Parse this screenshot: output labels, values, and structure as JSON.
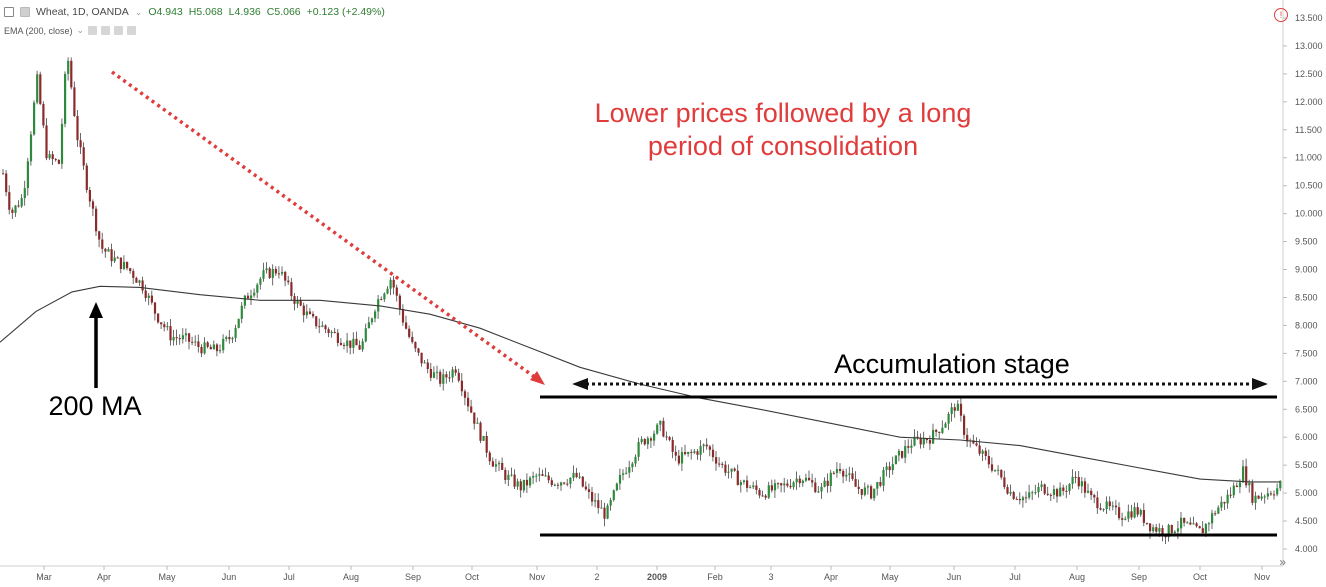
{
  "header": {
    "symbol": "Wheat, 1D, OANDA",
    "open": "O4.943",
    "high": "H5.068",
    "low": "L4.936",
    "close": "C5.066",
    "change": "+0.123 (+2.49%)"
  },
  "indicator": {
    "label": "EMA (200, close)"
  },
  "annotations": {
    "headline_line1": "Lower prices followed by a long",
    "headline_line2": "period of consolidation",
    "accumulation": "Accumulation stage",
    "ma_label": "200 MA"
  },
  "scroll_label": "»",
  "alert_label": "!",
  "chart_data": {
    "type": "candlestick",
    "title": "Wheat, 1D, OANDA",
    "y_ticks": [
      "13.500",
      "13.000",
      "12.500",
      "12.000",
      "11.500",
      "11.000",
      "10.500",
      "10.000",
      "9.500",
      "9.000",
      "8.500",
      "8.000",
      "7.500",
      "7.000",
      "6.500",
      "6.000",
      "5.500",
      "5.000",
      "4.500",
      "4.000"
    ],
    "x_ticks": [
      "Mar",
      "Apr",
      "May",
      "Jun",
      "Jul",
      "Aug",
      "Sep",
      "Oct",
      "Nov",
      "2",
      "2009",
      "Feb",
      "3",
      "Apr",
      "May",
      "Jun",
      "Jul",
      "Aug",
      "Sep",
      "Oct",
      "Nov"
    ],
    "ylim": [
      3.8,
      13.7
    ],
    "grid": false,
    "price_path": [
      [
        0,
        10.9
      ],
      [
        0.03,
        10.0
      ],
      [
        0.06,
        12.4
      ],
      [
        0.09,
        11.0
      ],
      [
        0.13,
        12.9
      ],
      [
        0.16,
        11.0
      ],
      [
        0.21,
        9.8
      ],
      [
        0.25,
        9.1
      ],
      [
        0.3,
        8.8
      ],
      [
        0.34,
        8.0
      ],
      [
        0.4,
        7.6
      ],
      [
        0.46,
        7.6
      ],
      [
        0.5,
        8.4
      ],
      [
        0.57,
        9.0
      ],
      [
        0.63,
        8.3
      ],
      [
        0.7,
        7.8
      ],
      [
        0.76,
        7.6
      ],
      [
        0.82,
        8.3
      ],
      [
        0.88,
        8.9
      ],
      [
        0.92,
        8.1
      ],
      [
        0.97,
        7.3
      ],
      [
        1.0,
        7.0
      ]
    ],
    "series_points": [
      {
        "x": 0,
        "y": 7.7
      },
      {
        "x": 36,
        "y": 8.25
      },
      {
        "x": 72,
        "y": 8.6
      },
      {
        "x": 100,
        "y": 8.7
      },
      {
        "x": 140,
        "y": 8.68
      },
      {
        "x": 200,
        "y": 8.55
      },
      {
        "x": 260,
        "y": 8.45
      },
      {
        "x": 320,
        "y": 8.45
      },
      {
        "x": 380,
        "y": 8.35
      },
      {
        "x": 430,
        "y": 8.2
      },
      {
        "x": 480,
        "y": 7.95
      },
      {
        "x": 530,
        "y": 7.6
      },
      {
        "x": 580,
        "y": 7.25
      },
      {
        "x": 640,
        "y": 6.95
      },
      {
        "x": 700,
        "y": 6.7
      },
      {
        "x": 760,
        "y": 6.5
      },
      {
        "x": 830,
        "y": 6.25
      },
      {
        "x": 900,
        "y": 6.0
      },
      {
        "x": 960,
        "y": 5.95
      },
      {
        "x": 1020,
        "y": 5.85
      },
      {
        "x": 1080,
        "y": 5.65
      },
      {
        "x": 1140,
        "y": 5.45
      },
      {
        "x": 1200,
        "y": 5.25
      },
      {
        "x": 1250,
        "y": 5.2
      },
      {
        "x": 1280,
        "y": 5.2
      }
    ],
    "consolidation_upper": 6.72,
    "consolidation_lower": 4.25,
    "colors": {
      "up": "#2e8b3e",
      "down": "#8b2a2a",
      "ma": "#3a3a3a",
      "annotation_red": "#e03c3c"
    }
  }
}
